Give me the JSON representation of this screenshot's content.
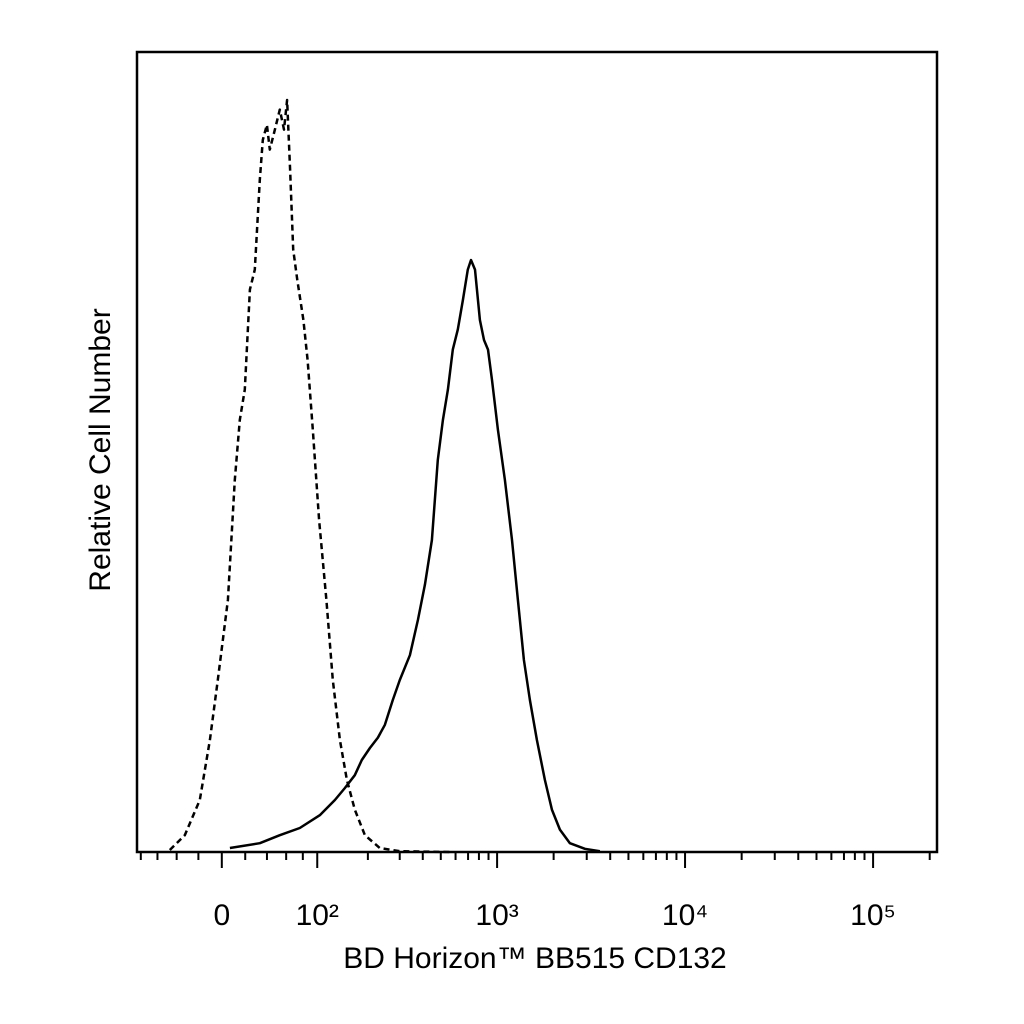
{
  "chart_data": {
    "type": "histogram-overlay",
    "x_label": "BD Horizon™ BB515 CD132",
    "y_label": "Relative Cell Number",
    "xscale": "biexponential",
    "xlim": [
      -85,
      218700
    ],
    "ylim": [
      0,
      100
    ],
    "xticks": [
      0,
      {
        "value": 100,
        "label": "10²"
      },
      {
        "value": 1000,
        "label": "10³"
      },
      {
        "value": 10000,
        "label": "10⁴"
      },
      {
        "value": 100000,
        "label": "10⁵"
      }
    ],
    "xminorticks": [
      -80,
      -60,
      -40,
      -20,
      20,
      40,
      60,
      80,
      200,
      300,
      400,
      500,
      600,
      700,
      800,
      900,
      2000,
      3000,
      4000,
      5000,
      6000,
      7000,
      8000,
      9000,
      20000,
      30000,
      40000,
      50000,
      60000,
      70000,
      80000,
      90000,
      200000
    ],
    "series": [
      {
        "color": "#000000",
        "dashed": true,
        "x": [
          -46.8,
          -32.3,
          -18.8,
          -10.1,
          -3.4,
          5.1,
          11.0,
          15.3,
          19.6,
          24.1,
          28.6,
          33.2,
          36.0,
          39.9,
          42.8,
          47.9,
          53.1,
          57.6,
          61.0,
          64.5,
          68.1,
          73.0,
          80.8,
          86.3,
          93.5,
          102.7,
          114.2,
          125.1,
          137.9,
          151.6,
          168.6,
          192.3,
          233.2,
          300.4,
          559
        ],
        "values": [
          0.25,
          2.1,
          6.5,
          14,
          21.5,
          31.5,
          46.5,
          54,
          57.8,
          70.3,
          72.8,
          84,
          89,
          90.9,
          87.8,
          90.3,
          92.8,
          90.3,
          94,
          85.3,
          75.3,
          71.5,
          66.5,
          61.5,
          52.8,
          41.5,
          31.5,
          21.5,
          14,
          9,
          5.3,
          2.1,
          0.5,
          0.1,
          0
        ]
      },
      {
        "color": "#000000",
        "dashed": false,
        "x": [
          6.8,
          33.2,
          53.1,
          76.2,
          103.9,
          128.7,
          147.6,
          168.6,
          184.9,
          205.2,
          227.4,
          248.6,
          275.1,
          300.4,
          340.6,
          376.3,
          410.6,
          447.7,
          482,
          513,
          546,
          580,
          617,
          657,
          698,
          726,
          762,
          810,
          851,
          894,
          939,
          1010,
          1101,
          1200,
          1291,
          1390,
          1496,
          1630,
          1797,
          1959,
          2160,
          2441,
          2934,
          3526
        ],
        "values": [
          0.5,
          1.1,
          2.1,
          3,
          4.6,
          6.5,
          8,
          9.6,
          11.5,
          13,
          14.3,
          15.9,
          19,
          21.5,
          24.6,
          29,
          33.4,
          39,
          49,
          54,
          57.8,
          62.8,
          65.3,
          69,
          72.8,
          74,
          72.8,
          66.5,
          64,
          62.8,
          59,
          52.8,
          46.5,
          39,
          31.5,
          24,
          19,
          14,
          9,
          5.3,
          2.8,
          1.1,
          0.4,
          0.1
        ]
      }
    ]
  }
}
